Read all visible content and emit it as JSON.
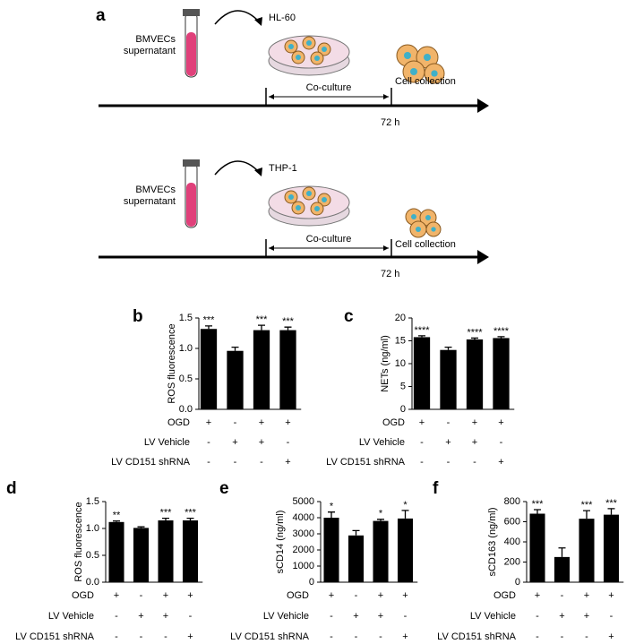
{
  "diagram": {
    "label": "a",
    "rows": [
      {
        "tube_label": [
          "BMVECs",
          "supernatant"
        ],
        "cell_line": "HL-60",
        "interval": "Co-culture",
        "endpoint": "Cell collection",
        "time": "72 h"
      },
      {
        "tube_label": [
          "BMVECs",
          "supernatant"
        ],
        "cell_line": "THP-1",
        "interval": "Co-culture",
        "endpoint": "Cell collection",
        "time": "72 h"
      }
    ]
  },
  "chart_data": [
    {
      "type": "bar",
      "panel": "b",
      "y_label": "ROS fluorescence",
      "values": [
        1.32,
        0.96,
        1.3,
        1.3
      ],
      "errors": [
        0.05,
        0.06,
        0.08,
        0.05
      ],
      "annotations": [
        "***",
        null,
        "***",
        "***"
      ],
      "ylim": [
        0,
        1.5
      ],
      "yticks": [
        {
          "value": 0,
          "label": "0.0"
        },
        0.5,
        {
          "value": 1,
          "label": "1.0"
        },
        1.5
      ],
      "color": "#000000",
      "conditions": [
        {
          "name": "OGD",
          "signs": [
            "+",
            "-",
            "+",
            "+"
          ]
        },
        {
          "name": "LV Vehicle",
          "signs": [
            "-",
            "+",
            "+",
            "-"
          ]
        },
        {
          "name": "LV CD151 shRNA",
          "signs": [
            "-",
            "-",
            "-",
            "+"
          ]
        }
      ]
    },
    {
      "type": "bar",
      "panel": "c",
      "y_label": "NETs (ng/ml)",
      "values": [
        15.8,
        13.0,
        15.3,
        15.6
      ],
      "errors": [
        0.3,
        0.6,
        0.3,
        0.3
      ],
      "annotations": [
        "****",
        null,
        "****",
        "****"
      ],
      "ylim": [
        0,
        20
      ],
      "yticks": [
        0,
        5,
        10,
        15,
        20
      ],
      "color": "#000000",
      "conditions": [
        {
          "name": "OGD",
          "signs": [
            "+",
            "-",
            "+",
            "+"
          ]
        },
        {
          "name": "LV Vehicle",
          "signs": [
            "-",
            "+",
            "+",
            "-"
          ]
        },
        {
          "name": "LV CD151 shRNA",
          "signs": [
            "-",
            "-",
            "-",
            "+"
          ]
        }
      ]
    },
    {
      "type": "bar",
      "panel": "d",
      "y_label": "ROS fluorescence",
      "values": [
        1.12,
        1.01,
        1.15,
        1.15
      ],
      "errors": [
        0.02,
        0.02,
        0.04,
        0.04
      ],
      "annotations": [
        "**",
        null,
        "***",
        "***"
      ],
      "ylim": [
        0,
        1.5
      ],
      "yticks": [
        {
          "value": 0,
          "label": "0.0"
        },
        0.5,
        {
          "value": 1,
          "label": "1.0"
        },
        1.5
      ],
      "color": "#000000",
      "conditions": [
        {
          "name": "OGD",
          "signs": [
            "+",
            "-",
            "+",
            "+"
          ]
        },
        {
          "name": "LV Vehicle",
          "signs": [
            "-",
            "+",
            "+",
            "-"
          ]
        },
        {
          "name": "LV CD151 shRNA",
          "signs": [
            "-",
            "-",
            "-",
            "+"
          ]
        }
      ]
    },
    {
      "type": "bar",
      "panel": "e",
      "y_label": "sCD14 (ng/ml)",
      "values": [
        4000,
        2900,
        3800,
        3950
      ],
      "errors": [
        350,
        300,
        100,
        500
      ],
      "annotations": [
        "*",
        null,
        "*",
        "*"
      ],
      "ylim": [
        0,
        5000
      ],
      "yticks": [
        0,
        1000,
        2000,
        3000,
        4000,
        5000
      ],
      "color": "#000000",
      "conditions": [
        {
          "name": "OGD",
          "signs": [
            "+",
            "-",
            "+",
            "+"
          ]
        },
        {
          "name": "LV Vehicle",
          "signs": [
            "-",
            "+",
            "+",
            "-"
          ]
        },
        {
          "name": "LV CD151 shRNA",
          "signs": [
            "-",
            "-",
            "-",
            "+"
          ]
        }
      ]
    },
    {
      "type": "bar",
      "panel": "f",
      "y_label": "sCD163 (ng/ml)",
      "values": [
        680,
        250,
        630,
        670
      ],
      "errors": [
        40,
        90,
        80,
        60
      ],
      "annotations": [
        "***",
        null,
        "***",
        "***"
      ],
      "ylim": [
        0,
        800
      ],
      "yticks": [
        0,
        200,
        400,
        600,
        800
      ],
      "color": "#000000",
      "conditions": [
        {
          "name": "OGD",
          "signs": [
            "+",
            "-",
            "+",
            "+"
          ]
        },
        {
          "name": "LV Vehicle",
          "signs": [
            "-",
            "+",
            "+",
            "-"
          ]
        },
        {
          "name": "LV CD151 shRNA",
          "signs": [
            "-",
            "-",
            "-",
            "+"
          ]
        }
      ]
    }
  ]
}
